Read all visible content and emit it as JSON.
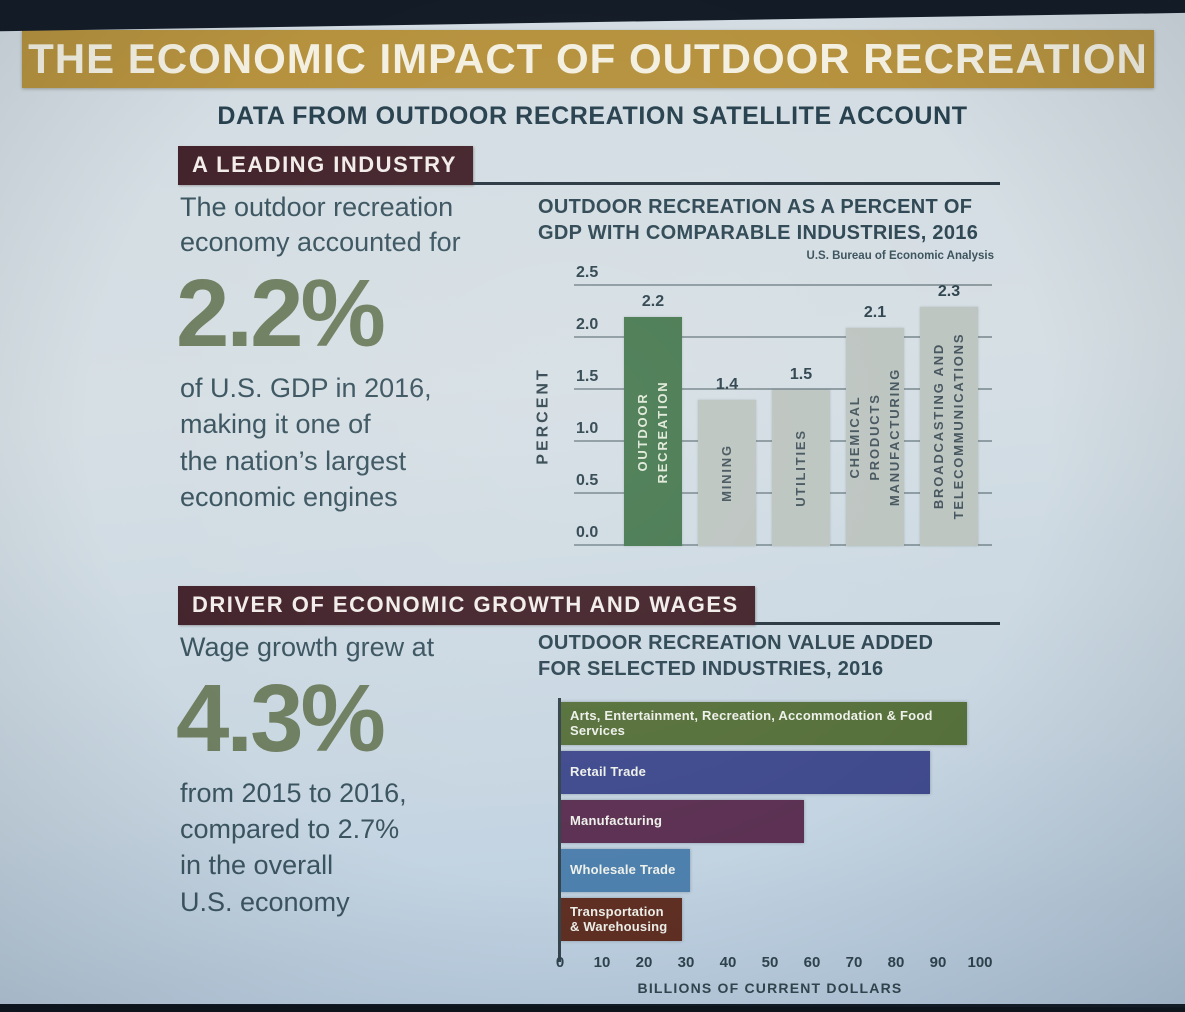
{
  "slide": {
    "title": "THE ECONOMIC IMPACT OF OUTDOOR RECREATION",
    "subtitle": "DATA FROM OUTDOOR RECREATION SATELLITE ACCOUNT"
  },
  "colors": {
    "banner_gold": "#b6923e",
    "banner_maroon": "#44242c",
    "stat_green": "#6f7f61",
    "body_text": "#3b5560",
    "highlight_bar_green": "#487a51",
    "comparison_bar_gray": "#bdc5c1"
  },
  "section1": {
    "banner": "A LEADING INDUSTRY",
    "lead": "The outdoor recreation\neconomy accounted for",
    "stat": "2.2%",
    "desc": "of U.S. GDP in 2016,\nmaking it one of\nthe nation’s largest\neconomic engines"
  },
  "section2": {
    "banner": "DRIVER OF ECONOMIC GROWTH AND WAGES",
    "lead": "Wage growth grew at",
    "stat": "4.3%",
    "desc": "from 2015 to 2016,\ncompared to 2.7%\nin the overall\nU.S. economy"
  },
  "chart_data": [
    {
      "type": "bar",
      "title": "OUTDOOR RECREATION AS A PERCENT OF\nGDP WITH COMPARABLE INDUSTRIES, 2016",
      "source": "U.S. Bureau of Economic Analysis",
      "ylabel": "PERCENT",
      "ylim": [
        0,
        2.5
      ],
      "grid": true,
      "ytick_values": [
        0,
        0.5,
        1.0,
        1.5,
        2.0,
        2.5
      ],
      "ytick_labels": [
        "0.0",
        "0.5",
        "1.0",
        "1.5",
        "2.0",
        "2.5"
      ],
      "categories": [
        "OUTDOOR RECREATION",
        "MINING",
        "UTILITIES",
        "CHEMICAL PRODUCTS MANUFACTURING",
        "BROADCASTING AND TELECOMMUNICATIONS"
      ],
      "values": [
        2.2,
        1.4,
        1.5,
        2.1,
        2.3
      ],
      "bars": [
        {
          "label": "OUTDOOR\nRECREATION",
          "value": 2.2,
          "display": "2.2",
          "color": "#487a51",
          "label_color": "#e0ead9"
        },
        {
          "label": "MINING",
          "value": 1.4,
          "display": "1.4",
          "color": "#bdc5c1",
          "label_color": "#46565e"
        },
        {
          "label": "UTILITIES",
          "value": 1.5,
          "display": "1.5",
          "color": "#bdc5c1",
          "label_color": "#46565e"
        },
        {
          "label": "CHEMICAL\nPRODUCTS\nMANUFACTURING",
          "value": 2.1,
          "display": "2.1",
          "color": "#bdc5c1",
          "label_color": "#46565e"
        },
        {
          "label": "BROADCASTING AND\nTELECOMMUNICATIONS",
          "value": 2.3,
          "display": "2.3",
          "color": "#bdc5c1",
          "label_color": "#46565e"
        }
      ]
    },
    {
      "type": "bar-horizontal",
      "title": "OUTDOOR RECREATION VALUE ADDED\nFOR SELECTED INDUSTRIES, 2016",
      "xlabel": "BILLIONS OF CURRENT DOLLARS",
      "xlim": [
        0,
        100
      ],
      "xtick_values": [
        0,
        10,
        20,
        30,
        40,
        50,
        60,
        70,
        80,
        90,
        100
      ],
      "xtick_labels": [
        "0",
        "10",
        "20",
        "30",
        "40",
        "50",
        "60",
        "70",
        "80",
        "90",
        "100"
      ],
      "categories": [
        "Arts, Entertainment, Recreation, Accommodation & Food Services",
        "Retail Trade",
        "Manufacturing",
        "Wholesale Trade",
        "Transportation & Warehousing"
      ],
      "values": [
        97,
        88,
        58,
        31,
        29
      ],
      "bars": [
        {
          "label": "Arts, Entertainment, Recreation, Accommodation & Food Services",
          "value": 97,
          "color": "#57713c"
        },
        {
          "label": "Retail Trade",
          "value": 88,
          "color": "#404b8e"
        },
        {
          "label": "Manufacturing",
          "value": 58,
          "color": "#5c3153"
        },
        {
          "label": "Wholesale Trade",
          "value": 31,
          "color": "#4e80ae"
        },
        {
          "label": "Transportation\n& Warehousing",
          "value": 29,
          "color": "#602f23"
        }
      ]
    }
  ]
}
